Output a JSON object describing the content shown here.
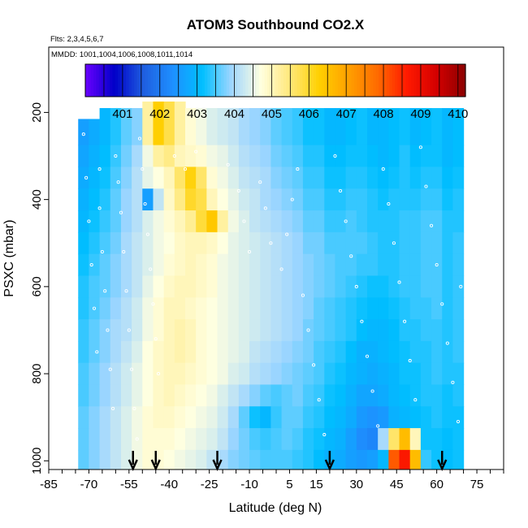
{
  "chart_data": {
    "type": "heatmap",
    "title": "ATOM3 Southbound CO2.X",
    "flights_note": "Flts: 2,3,4,5,6,7",
    "mmdd_note": "MMDD: 1001,1004,1006,1008,1011,1014",
    "xlabel": "Latitude (deg N)",
    "ylabel": "PSXC (mbar)",
    "xlim": [
      -85,
      85
    ],
    "ylim": [
      1020,
      50
    ],
    "x_tick_labels": [
      "-85",
      "-70",
      "-55",
      "-40",
      "-25",
      "-10",
      "5",
      "15",
      "30",
      "45",
      "60",
      "75"
    ],
    "x_tick_values": [
      -85,
      -70,
      -55,
      -40,
      -25,
      -10,
      5,
      15,
      30,
      45,
      60,
      75
    ],
    "y_tick_labels": [
      "200",
      "400",
      "600",
      "800",
      "1000"
    ],
    "y_tick_values": [
      200,
      400,
      600,
      800,
      1000
    ],
    "colorbar": {
      "labels": [
        "401",
        "402",
        "403",
        "404",
        "405",
        "406",
        "407",
        "408",
        "409",
        "410"
      ],
      "range": [
        400,
        410.2
      ],
      "colors": [
        "#6a00ff",
        "#0000c8",
        "#1f5fe0",
        "#1e90ff",
        "#00bfff",
        "#9fd6ff",
        "#ffffe0",
        "#ffe87a",
        "#ffd000",
        "#ffa000",
        "#ff6a00",
        "#ff1a00",
        "#d40000",
        "#8b0000"
      ]
    },
    "latitude_bins": [
      -72,
      -68,
      -64,
      -60,
      -56,
      -52,
      -48,
      -44,
      -40,
      -36,
      -32,
      -28,
      -24,
      -20,
      -16,
      -12,
      -8,
      -4,
      0,
      4,
      8,
      12,
      16,
      20,
      24,
      28,
      32,
      36,
      40,
      44,
      48,
      52,
      56,
      60,
      64,
      68
    ],
    "pressure_bins": [
      250,
      300,
      350,
      400,
      450,
      500,
      550,
      600,
      650,
      700,
      750,
      800,
      850,
      900,
      950,
      1000
    ],
    "co2_grid": [
      [
        402.6,
        402.8,
        403.0,
        403.3,
        403.6,
        403.8,
        405.2,
        406.3,
        405.8,
        405.2,
        404.8,
        404.6,
        404.4,
        404.3,
        404.2,
        404.0,
        403.9,
        403.8,
        403.6,
        403.5,
        403.4,
        403.2,
        403.2,
        403.0,
        403.0,
        403.1,
        403.2,
        403.0,
        403.0,
        403.1,
        403.2,
        403.0,
        403.1,
        403.2,
        403.0,
        403.1
      ],
      [
        402.7,
        402.9,
        403.1,
        403.4,
        403.7,
        404.0,
        404.6,
        405.2,
        405.4,
        405.0,
        404.9,
        404.8,
        404.6,
        404.5,
        404.3,
        404.1,
        404.0,
        403.9,
        403.7,
        403.6,
        403.5,
        403.3,
        403.3,
        403.1,
        403.1,
        403.2,
        403.2,
        403.1,
        403.0,
        403.1,
        403.3,
        403.1,
        403.2,
        403.2,
        403.0,
        403.1
      ],
      [
        402.8,
        403.0,
        403.2,
        403.5,
        403.8,
        404.1,
        404.5,
        404.7,
        405.0,
        405.6,
        406.2,
        405.6,
        404.8,
        404.6,
        404.4,
        404.2,
        404.1,
        404.0,
        403.8,
        403.7,
        403.6,
        403.4,
        403.4,
        403.2,
        403.2,
        403.3,
        403.3,
        403.2,
        403.1,
        403.2,
        403.3,
        403.2,
        403.3,
        403.3,
        403.1,
        403.2
      ],
      [
        402.9,
        403.1,
        403.3,
        403.6,
        403.9,
        404.1,
        402.6,
        404.2,
        404.9,
        405.4,
        406.0,
        405.8,
        405.0,
        404.7,
        404.5,
        404.3,
        404.2,
        404.0,
        403.9,
        403.8,
        403.7,
        403.5,
        403.5,
        403.3,
        403.3,
        403.4,
        403.4,
        403.3,
        403.2,
        403.3,
        403.3,
        403.3,
        403.4,
        403.4,
        403.2,
        403.3
      ],
      [
        403.0,
        403.2,
        403.4,
        403.6,
        403.9,
        404.1,
        404.4,
        404.6,
        404.8,
        405.0,
        405.3,
        405.9,
        406.4,
        405.2,
        404.6,
        404.4,
        404.2,
        404.1,
        404.0,
        403.9,
        403.8,
        403.6,
        403.6,
        403.4,
        403.4,
        403.5,
        403.4,
        403.3,
        403.3,
        403.3,
        403.4,
        403.4,
        403.5,
        403.5,
        403.3,
        403.3
      ],
      [
        403.1,
        403.3,
        403.5,
        403.7,
        404.0,
        404.2,
        404.4,
        404.6,
        404.7,
        404.9,
        405.0,
        405.0,
        404.9,
        404.7,
        404.5,
        404.4,
        404.3,
        404.2,
        404.1,
        404.0,
        403.9,
        403.7,
        403.7,
        403.5,
        403.5,
        403.5,
        403.5,
        403.4,
        403.3,
        403.3,
        403.4,
        403.4,
        403.5,
        403.5,
        403.3,
        403.4
      ],
      [
        403.2,
        403.4,
        403.6,
        403.8,
        404.0,
        404.2,
        404.4,
        404.6,
        404.8,
        404.9,
        405.0,
        404.9,
        404.8,
        404.6,
        404.5,
        404.4,
        404.3,
        404.2,
        404.1,
        404.0,
        403.9,
        403.8,
        403.7,
        403.6,
        403.5,
        403.5,
        403.4,
        403.4,
        403.3,
        403.3,
        403.4,
        403.4,
        403.5,
        403.5,
        403.3,
        403.4
      ],
      [
        403.3,
        403.5,
        403.6,
        403.8,
        404.0,
        404.2,
        404.5,
        404.7,
        404.9,
        405.0,
        405.0,
        404.9,
        404.8,
        404.6,
        404.5,
        404.4,
        404.3,
        404.2,
        404.1,
        404.0,
        403.9,
        403.8,
        403.7,
        403.6,
        403.5,
        403.4,
        403.3,
        403.2,
        403.2,
        403.3,
        403.4,
        403.4,
        403.5,
        403.5,
        403.3,
        403.4
      ],
      [
        403.3,
        403.5,
        403.7,
        403.9,
        404.1,
        404.3,
        404.6,
        404.8,
        405.0,
        405.0,
        404.9,
        404.8,
        404.7,
        404.6,
        404.5,
        404.4,
        404.3,
        404.2,
        404.1,
        404.0,
        403.9,
        403.8,
        403.6,
        403.5,
        403.4,
        403.3,
        403.2,
        403.1,
        403.1,
        403.2,
        403.3,
        403.4,
        403.4,
        403.5,
        403.3,
        403.4
      ],
      [
        403.4,
        403.6,
        403.8,
        404.0,
        404.1,
        404.3,
        404.6,
        404.8,
        405.0,
        405.1,
        405.0,
        404.8,
        404.7,
        404.6,
        404.5,
        404.4,
        404.3,
        404.2,
        404.1,
        404.0,
        403.9,
        403.7,
        403.6,
        403.5,
        403.4,
        403.3,
        403.1,
        403.0,
        403.0,
        403.1,
        403.3,
        403.3,
        403.4,
        403.4,
        403.3,
        403.4
      ],
      [
        403.4,
        403.6,
        403.8,
        404.0,
        404.2,
        404.4,
        404.7,
        404.9,
        405.0,
        405.1,
        405.0,
        404.8,
        404.7,
        404.6,
        404.5,
        404.4,
        404.2,
        404.1,
        404.0,
        403.9,
        403.8,
        403.7,
        403.5,
        403.4,
        403.3,
        403.1,
        402.9,
        402.9,
        403.0,
        403.1,
        403.2,
        403.3,
        403.3,
        403.4,
        403.3,
        403.4
      ],
      [
        403.5,
        403.7,
        403.9,
        404.1,
        404.3,
        404.5,
        404.7,
        404.9,
        405.0,
        405.0,
        404.9,
        404.8,
        404.7,
        404.6,
        404.4,
        404.3,
        404.1,
        404.0,
        403.9,
        403.8,
        403.7,
        403.6,
        403.5,
        403.3,
        403.2,
        403.0,
        402.9,
        402.8,
        402.9,
        403.0,
        403.2,
        403.2,
        403.3,
        403.4,
        403.3,
        403.3
      ],
      [
        403.5,
        403.7,
        403.9,
        404.1,
        404.3,
        404.5,
        404.7,
        404.9,
        405.0,
        404.9,
        404.8,
        404.7,
        404.6,
        404.4,
        404.2,
        404.0,
        403.8,
        403.6,
        403.5,
        403.6,
        403.7,
        403.5,
        403.4,
        403.2,
        403.1,
        402.9,
        402.7,
        402.7,
        402.8,
        403.0,
        403.1,
        403.2,
        403.3,
        403.3,
        403.2,
        403.3
      ],
      [
        403.6,
        403.8,
        404.0,
        404.2,
        404.4,
        404.6,
        404.8,
        404.9,
        404.9,
        404.8,
        404.7,
        404.6,
        404.5,
        404.3,
        404.0,
        403.6,
        403.2,
        403.0,
        403.4,
        403.6,
        403.6,
        403.4,
        403.3,
        403.1,
        403.0,
        402.8,
        402.5,
        402.4,
        402.5,
        402.9,
        403.0,
        403.1,
        403.2,
        403.3,
        403.2,
        403.2
      ],
      [
        403.6,
        403.8,
        404.0,
        404.2,
        404.4,
        404.6,
        404.8,
        404.8,
        404.8,
        404.7,
        404.6,
        404.5,
        404.4,
        404.2,
        403.9,
        403.7,
        403.5,
        403.4,
        403.5,
        403.6,
        403.5,
        403.3,
        403.2,
        403.0,
        402.9,
        402.6,
        402.3,
        402.2,
        404.0,
        405.6,
        406.6,
        405.0,
        403.2,
        403.2,
        403.1,
        403.2
      ],
      [
        403.6,
        403.8,
        404.0,
        404.2,
        404.4,
        404.6,
        404.8,
        404.8,
        404.7,
        404.6,
        404.5,
        404.4,
        404.2,
        404.0,
        403.8,
        403.7,
        403.6,
        403.5,
        403.5,
        403.5,
        403.4,
        403.3,
        403.1,
        402.9,
        402.8,
        402.6,
        402.5,
        402.6,
        403.0,
        408.0,
        408.7,
        406.6,
        403.4,
        403.2,
        403.1,
        403.2
      ]
    ],
    "column_top_pressure": [
      215,
      215,
      190,
      190,
      190,
      190,
      175,
      175,
      175,
      175,
      190,
      190,
      190,
      190,
      190,
      190,
      190,
      190,
      190,
      190,
      190,
      190,
      190,
      190,
      190,
      190,
      190,
      190,
      190,
      190,
      190,
      190,
      190,
      190,
      190,
      190
    ],
    "flight_arrows_latitude": [
      -53.5,
      -45,
      -22,
      20,
      62
    ],
    "observation_markers": [
      {
        "lat": -66,
        "p": 330
      },
      {
        "lat": -66,
        "p": 420
      },
      {
        "lat": -65,
        "p": 520
      },
      {
        "lat": -64,
        "p": 610
      },
      {
        "lat": -63,
        "p": 700
      },
      {
        "lat": -62,
        "p": 790
      },
      {
        "lat": -61,
        "p": 880
      },
      {
        "lat": -60,
        "p": 300
      },
      {
        "lat": -59,
        "p": 360
      },
      {
        "lat": -58,
        "p": 430
      },
      {
        "lat": -57,
        "p": 520
      },
      {
        "lat": -56,
        "p": 610
      },
      {
        "lat": -55,
        "p": 700
      },
      {
        "lat": -54,
        "p": 790
      },
      {
        "lat": -53,
        "p": 880
      },
      {
        "lat": -52,
        "p": 950
      },
      {
        "lat": -51,
        "p": 260
      },
      {
        "lat": -50,
        "p": 330
      },
      {
        "lat": -49,
        "p": 410
      },
      {
        "lat": -48,
        "p": 480
      },
      {
        "lat": -47,
        "p": 560
      },
      {
        "lat": -46,
        "p": 640
      },
      {
        "lat": -45,
        "p": 720
      },
      {
        "lat": -44,
        "p": 800
      },
      {
        "lat": -38,
        "p": 300
      },
      {
        "lat": -34,
        "p": 330
      },
      {
        "lat": -30,
        "p": 290
      },
      {
        "lat": -18,
        "p": 320
      },
      {
        "lat": -14,
        "p": 380
      },
      {
        "lat": -12,
        "p": 450
      },
      {
        "lat": -10,
        "p": 520
      },
      {
        "lat": -6,
        "p": 360
      },
      {
        "lat": -4,
        "p": 420
      },
      {
        "lat": -2,
        "p": 500
      },
      {
        "lat": 2,
        "p": 560
      },
      {
        "lat": 4,
        "p": 480
      },
      {
        "lat": 6,
        "p": 400
      },
      {
        "lat": 8,
        "p": 330
      },
      {
        "lat": 10,
        "p": 620
      },
      {
        "lat": 12,
        "p": 700
      },
      {
        "lat": 14,
        "p": 780
      },
      {
        "lat": 16,
        "p": 860
      },
      {
        "lat": 18,
        "p": 940
      },
      {
        "lat": 22,
        "p": 300
      },
      {
        "lat": 24,
        "p": 380
      },
      {
        "lat": 26,
        "p": 450
      },
      {
        "lat": 28,
        "p": 530
      },
      {
        "lat": 30,
        "p": 600
      },
      {
        "lat": 32,
        "p": 680
      },
      {
        "lat": 34,
        "p": 760
      },
      {
        "lat": 36,
        "p": 840
      },
      {
        "lat": 38,
        "p": 920
      },
      {
        "lat": 40,
        "p": 330
      },
      {
        "lat": 42,
        "p": 410
      },
      {
        "lat": 44,
        "p": 500
      },
      {
        "lat": 46,
        "p": 590
      },
      {
        "lat": 48,
        "p": 680
      },
      {
        "lat": 50,
        "p": 770
      },
      {
        "lat": 52,
        "p": 860
      },
      {
        "lat": 54,
        "p": 280
      },
      {
        "lat": 56,
        "p": 370
      },
      {
        "lat": 58,
        "p": 460
      },
      {
        "lat": 60,
        "p": 550
      },
      {
        "lat": 62,
        "p": 640
      },
      {
        "lat": 64,
        "p": 730
      },
      {
        "lat": 66,
        "p": 820
      },
      {
        "lat": 68,
        "p": 910
      },
      {
        "lat": 69,
        "p": 600
      },
      {
        "lat": -70,
        "p": 450
      },
      {
        "lat": -69,
        "p": 550
      },
      {
        "lat": -68,
        "p": 650
      },
      {
        "lat": -67,
        "p": 750
      },
      {
        "lat": -71,
        "p": 350
      },
      {
        "lat": -72,
        "p": 250
      }
    ]
  }
}
